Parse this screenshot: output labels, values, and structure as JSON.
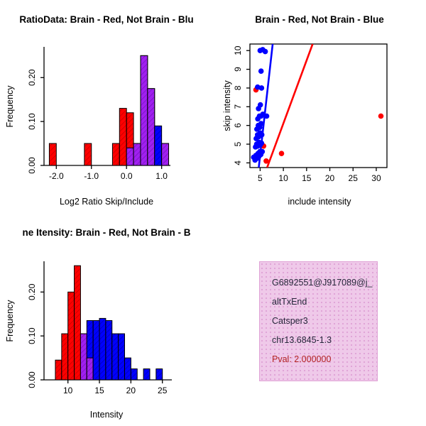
{
  "colors": {
    "red": "#FF0000",
    "blue": "#0000FF",
    "purple": "#A020F0",
    "axis": "#000000"
  },
  "info_box": {
    "bg": "#EFC9E9",
    "dot": "#DFA3D6",
    "text_color": "#26263a",
    "pval_color": "#B22222",
    "lines": [
      "G6892551@J917089@j_",
      "altTxEnd",
      "Catsper3",
      "chr13.6845-1.3"
    ],
    "pval": "Pval: 2.000000"
  },
  "chart_data": [
    {
      "id": "log2-ratio-histogram",
      "type": "bar",
      "title": "RatioData: Brain - Red, Not Brain - Blu",
      "xlabel": "Log2 Ratio Skip/Include",
      "ylabel": "Frequency",
      "xlim": [
        -2.35,
        1.25
      ],
      "ylim": [
        0,
        0.27
      ],
      "xticks": [
        {
          "v": -2,
          "label": "-2.0"
        },
        {
          "v": -1,
          "label": "-1.0"
        },
        {
          "v": 0,
          "label": "0.0"
        },
        {
          "v": 1,
          "label": "1.0"
        }
      ],
      "yticks": [
        {
          "v": 0,
          "label": "0.00"
        },
        {
          "v": 0.1,
          "label": "0.10"
        },
        {
          "v": 0.2,
          "label": "0.20"
        }
      ],
      "bin_width": 0.2,
      "bins": [
        {
          "x": -2.2,
          "red": 0.05,
          "blue": 0
        },
        {
          "x": -1.2,
          "red": 0.05,
          "blue": 0
        },
        {
          "x": -0.4,
          "red": 0.05,
          "blue": 0
        },
        {
          "x": -0.2,
          "red": 0.13,
          "blue": 0
        },
        {
          "x": 0.0,
          "red": 0.12,
          "blue": 0.04
        },
        {
          "x": 0.2,
          "red": 0.05,
          "blue": 0.05
        },
        {
          "x": 0.4,
          "red": 0.25,
          "blue": 0.25
        },
        {
          "x": 0.6,
          "red": 0.175,
          "blue": 0.175
        },
        {
          "x": 0.8,
          "red": 0,
          "blue": 0.09
        },
        {
          "x": 1.0,
          "red": 0.05,
          "blue": 0.05
        }
      ],
      "legend_note": "Brain - Red, Not Brain - Blue"
    },
    {
      "id": "intensity-scatter",
      "type": "scatter",
      "title": "Brain - Red, Not Brain - Blue",
      "xlabel": "include intensity",
      "ylabel": "skip intensity",
      "xlim": [
        2.8,
        32.3
      ],
      "ylim": [
        3.75,
        10.35
      ],
      "xticks": [
        {
          "v": 5,
          "label": "5"
        },
        {
          "v": 10,
          "label": "10"
        },
        {
          "v": 15,
          "label": "15"
        },
        {
          "v": 20,
          "label": "20"
        },
        {
          "v": 25,
          "label": "25"
        },
        {
          "v": 30,
          "label": "30"
        }
      ],
      "yticks": [
        {
          "v": 4,
          "label": "4"
        },
        {
          "v": 5,
          "label": "5"
        },
        {
          "v": 6,
          "label": "6"
        },
        {
          "v": 7,
          "label": "7"
        },
        {
          "v": 8,
          "label": "8"
        },
        {
          "v": 9,
          "label": "9"
        },
        {
          "v": 10,
          "label": "10"
        }
      ],
      "blue_points": [
        [
          3.6,
          4.3
        ],
        [
          3.9,
          4.15
        ],
        [
          4.1,
          4.4
        ],
        [
          4.35,
          4.25
        ],
        [
          4.55,
          4.5
        ],
        [
          4.75,
          4.35
        ],
        [
          4.95,
          4.6
        ],
        [
          5.15,
          4.45
        ],
        [
          5.45,
          4.6
        ],
        [
          4.0,
          4.85
        ],
        [
          4.25,
          5.0
        ],
        [
          4.5,
          4.9
        ],
        [
          4.75,
          5.1
        ],
        [
          5.0,
          4.95
        ],
        [
          5.3,
          5.05
        ],
        [
          4.15,
          5.3
        ],
        [
          4.45,
          5.5
        ],
        [
          4.7,
          5.4
        ],
        [
          5.0,
          5.6
        ],
        [
          5.35,
          5.5
        ],
        [
          4.3,
          5.8
        ],
        [
          4.6,
          6.0
        ],
        [
          4.9,
          5.9
        ],
        [
          5.2,
          6.1
        ],
        [
          4.5,
          6.35
        ],
        [
          4.85,
          6.5
        ],
        [
          5.2,
          6.5
        ],
        [
          5.6,
          6.6
        ],
        [
          6.4,
          6.5
        ],
        [
          4.65,
          6.9
        ],
        [
          5.05,
          7.1
        ],
        [
          4.45,
          8.05
        ],
        [
          5.3,
          8.0
        ],
        [
          5.2,
          8.9
        ],
        [
          5.0,
          10.0
        ],
        [
          5.55,
          10.05
        ],
        [
          6.1,
          9.95
        ]
      ],
      "red_points": [
        [
          4.1,
          7.9
        ],
        [
          5.75,
          4.9
        ],
        [
          6.3,
          4.1
        ],
        [
          9.6,
          4.5
        ],
        [
          31.0,
          6.5
        ]
      ],
      "blue_line": {
        "x_at_ymin": 4.7,
        "x_at_ymax": 7.7
      },
      "red_line": {
        "x_at_ymin": 6.5,
        "x_at_ymax": 16.3
      }
    },
    {
      "id": "gene-intensity-histogram",
      "type": "bar",
      "title": "ne Itensity: Brain - Red, Not Brain - B",
      "xlabel": "Intensity",
      "ylabel": "Frequency",
      "xlim": [
        6.2,
        26.5
      ],
      "ylim": [
        0,
        0.27
      ],
      "xticks": [
        {
          "v": 10,
          "label": "10"
        },
        {
          "v": 15,
          "label": "15"
        },
        {
          "v": 20,
          "label": "20"
        },
        {
          "v": 25,
          "label": "25"
        }
      ],
      "yticks": [
        {
          "v": 0,
          "label": "0.00"
        },
        {
          "v": 0.1,
          "label": "0.10"
        },
        {
          "v": 0.2,
          "label": "0.20"
        }
      ],
      "bin_width": 1,
      "bins": [
        {
          "x": 8,
          "red": 0.045,
          "blue": 0
        },
        {
          "x": 9,
          "red": 0.105,
          "blue": 0
        },
        {
          "x": 10,
          "red": 0.2,
          "blue": 0
        },
        {
          "x": 11,
          "red": 0.26,
          "blue": 0
        },
        {
          "x": 12,
          "red": 0.105,
          "blue": 0.105
        },
        {
          "x": 13,
          "red": 0.05,
          "blue": 0.135
        },
        {
          "x": 14,
          "red": 0,
          "blue": 0.135
        },
        {
          "x": 15,
          "red": 0,
          "blue": 0.14
        },
        {
          "x": 16,
          "red": 0,
          "blue": 0.135
        },
        {
          "x": 17,
          "red": 0,
          "blue": 0.105
        },
        {
          "x": 18,
          "red": 0,
          "blue": 0.105
        },
        {
          "x": 19,
          "red": 0,
          "blue": 0.05
        },
        {
          "x": 20,
          "red": 0,
          "blue": 0.025
        },
        {
          "x": 22,
          "red": 0,
          "blue": 0.025
        },
        {
          "x": 24,
          "red": 0,
          "blue": 0.025
        }
      ],
      "legend_note": "Brain - Red, Not Brain - Blue"
    }
  ]
}
